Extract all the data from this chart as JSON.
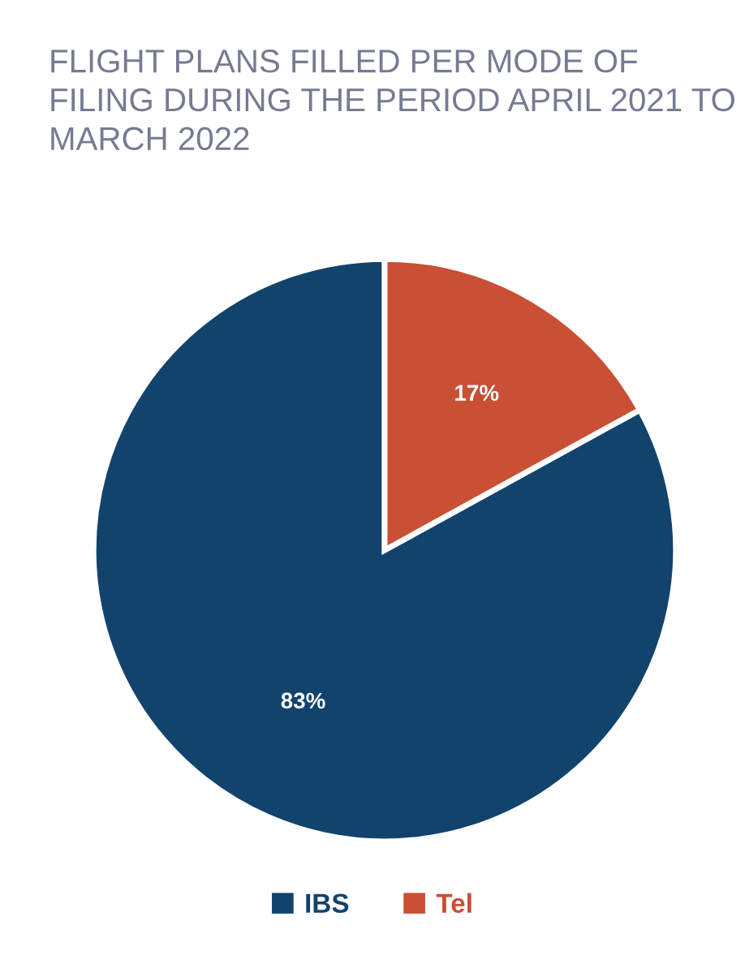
{
  "chart_data": {
    "type": "pie",
    "title": "FLIGHT PLANS FILLED PER MODE OF FILING DURING THE PERIOD APRIL 2021 TO MARCH 2022",
    "categories": [
      "IBS",
      "Tel"
    ],
    "values": [
      83,
      17
    ],
    "colors": [
      "#12436d",
      "#c94f35"
    ],
    "value_labels": [
      "83%",
      "17%"
    ],
    "legend": "bottom"
  }
}
